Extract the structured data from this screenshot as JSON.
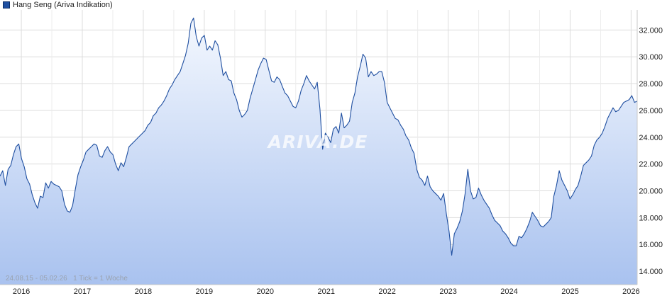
{
  "chart_data": {
    "type": "area",
    "legend": "Hang Seng (Ariva Indikation)",
    "watermark": "ARIVA.DE",
    "period_label": "24.08.15 - 05.02.26",
    "tick_label": "1 Tick = 1 Woche",
    "x_start": 2015.65,
    "x_end": 2026.1,
    "xlim": [
      2015.65,
      2026.1
    ],
    "ylim": [
      13000,
      33500
    ],
    "y_ticks": [
      {
        "value": 14000,
        "label": "14.000"
      },
      {
        "value": 16000,
        "label": "16.000"
      },
      {
        "value": 18000,
        "label": "18.000"
      },
      {
        "value": 20000,
        "label": "20.000"
      },
      {
        "value": 22000,
        "label": "22.000"
      },
      {
        "value": 24000,
        "label": "24.000"
      },
      {
        "value": 26000,
        "label": "26.000"
      },
      {
        "value": 28000,
        "label": "28.000"
      },
      {
        "value": 30000,
        "label": "30.000"
      },
      {
        "value": 32000,
        "label": "32.000"
      }
    ],
    "x_ticks": [
      {
        "value": 2016,
        "label": "2016"
      },
      {
        "value": 2017,
        "label": "2017"
      },
      {
        "value": 2018,
        "label": "2018"
      },
      {
        "value": 2019,
        "label": "2019"
      },
      {
        "value": 2020,
        "label": "2020"
      },
      {
        "value": 2021,
        "label": "2021"
      },
      {
        "value": 2022,
        "label": "2022"
      },
      {
        "value": 2023,
        "label": "2023"
      },
      {
        "value": 2024,
        "label": "2024"
      },
      {
        "value": 2025,
        "label": "2025"
      },
      {
        "value": 2026,
        "label": "2026"
      }
    ],
    "series": [
      {
        "values": [
          21100,
          21500,
          20400,
          21600,
          21900,
          22700,
          23300,
          23500,
          22400,
          21800,
          20900,
          20500,
          19700,
          19100,
          18700,
          19600,
          19500,
          20600,
          20200,
          20700,
          20500,
          20400,
          20300,
          20000,
          19000,
          18500,
          18400,
          18900,
          20100,
          21200,
          21800,
          22300,
          22900,
          23100,
          23300,
          23500,
          23400,
          22600,
          22500,
          23000,
          23300,
          22900,
          22700,
          22000,
          21500,
          22100,
          21800,
          22500,
          23300,
          23500,
          23700,
          23900,
          24100,
          24300,
          24500,
          24900,
          25100,
          25600,
          25800,
          26200,
          26400,
          26700,
          27100,
          27600,
          27900,
          28300,
          28600,
          28900,
          29500,
          30100,
          31000,
          32500,
          32900,
          31500,
          30800,
          31400,
          31600,
          30500,
          30800,
          30500,
          31200,
          30900,
          29900,
          28600,
          28900,
          28300,
          28200,
          27300,
          26800,
          26000,
          25500,
          25700,
          26000,
          26900,
          27600,
          28300,
          29000,
          29500,
          29900,
          29800,
          29000,
          28200,
          28100,
          28500,
          28300,
          27800,
          27300,
          27100,
          26700,
          26300,
          26200,
          26700,
          27500,
          28000,
          28600,
          28200,
          27900,
          27600,
          28100,
          26100,
          23100,
          24300,
          24000,
          23600,
          24600,
          24800,
          24300,
          25800,
          24700,
          24900,
          25200,
          26600,
          27300,
          28500,
          29300,
          30200,
          29900,
          28500,
          28900,
          28600,
          28700,
          28900,
          28900,
          28100,
          26600,
          26200,
          25800,
          25400,
          25300,
          24900,
          24600,
          24100,
          23800,
          23200,
          22800,
          21600,
          21000,
          20800,
          20400,
          21100,
          20300,
          20000,
          19800,
          19600,
          19300,
          19800,
          18300,
          17000,
          15200,
          16800,
          17200,
          17700,
          18500,
          19800,
          21600,
          20000,
          19400,
          19500,
          20200,
          19700,
          19300,
          19000,
          18700,
          18200,
          17800,
          17600,
          17400,
          17000,
          16800,
          16500,
          16100,
          15900,
          15900,
          16600,
          16500,
          16800,
          17200,
          17700,
          18400,
          18100,
          17800,
          17400,
          17300,
          17500,
          17700,
          18000,
          19600,
          20400,
          21500,
          20800,
          20400,
          20000,
          19400,
          19700,
          20100,
          20400,
          21100,
          21900,
          22100,
          22300,
          22600,
          23400,
          23800,
          24000,
          24300,
          24800,
          25400,
          25800,
          26200,
          25900,
          26000,
          26300,
          26600,
          26700,
          26800,
          27100,
          26600,
          26700
        ]
      }
    ]
  }
}
